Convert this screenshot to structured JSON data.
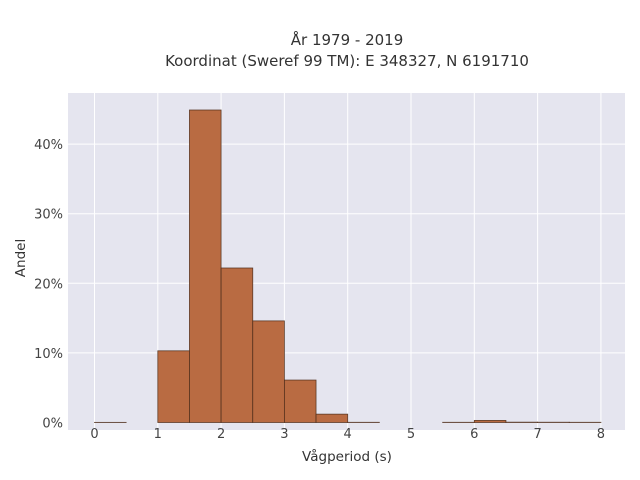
{
  "chart_data": {
    "type": "bar",
    "title_line1": "År 1979 - 2019",
    "title_line2": "Koordinat (Sweref 99 TM): E 348327, N 6191710",
    "xlabel": "Vågperiod (s)",
    "ylabel": "Andel",
    "xlim": [
      -0.35,
      8.4
    ],
    "ylim": [
      0,
      0.47
    ],
    "x_ticks": [
      0,
      1,
      2,
      3,
      4,
      5,
      6,
      7,
      8
    ],
    "y_ticks": [
      0,
      0.1,
      0.2,
      0.3,
      0.4
    ],
    "y_tick_labels": [
      "0%",
      "10%",
      "20%",
      "30%",
      "40%"
    ],
    "bin_width": 0.5,
    "bins": [
      {
        "x0": 0.0,
        "value": 0.0002
      },
      {
        "x0": 0.5,
        "value": 0.0
      },
      {
        "x0": 1.0,
        "value": 0.103
      },
      {
        "x0": 1.5,
        "value": 0.449
      },
      {
        "x0": 2.0,
        "value": 0.222
      },
      {
        "x0": 2.5,
        "value": 0.146
      },
      {
        "x0": 3.0,
        "value": 0.061
      },
      {
        "x0": 3.5,
        "value": 0.012
      },
      {
        "x0": 4.0,
        "value": 0.0003
      },
      {
        "x0": 4.5,
        "value": 0.0
      },
      {
        "x0": 5.0,
        "value": 0.0
      },
      {
        "x0": 5.5,
        "value": 0.0003
      },
      {
        "x0": 6.0,
        "value": 0.003
      },
      {
        "x0": 6.5,
        "value": 0.0005
      },
      {
        "x0": 7.0,
        "value": 0.0004
      },
      {
        "x0": 7.5,
        "value": 0.0003
      }
    ],
    "colors": {
      "bar_fill": "#b96b42",
      "bar_stroke": "#4a2a18",
      "plot_bg": "#e5e5ef",
      "grid": "#ffffff"
    },
    "grid": true
  }
}
